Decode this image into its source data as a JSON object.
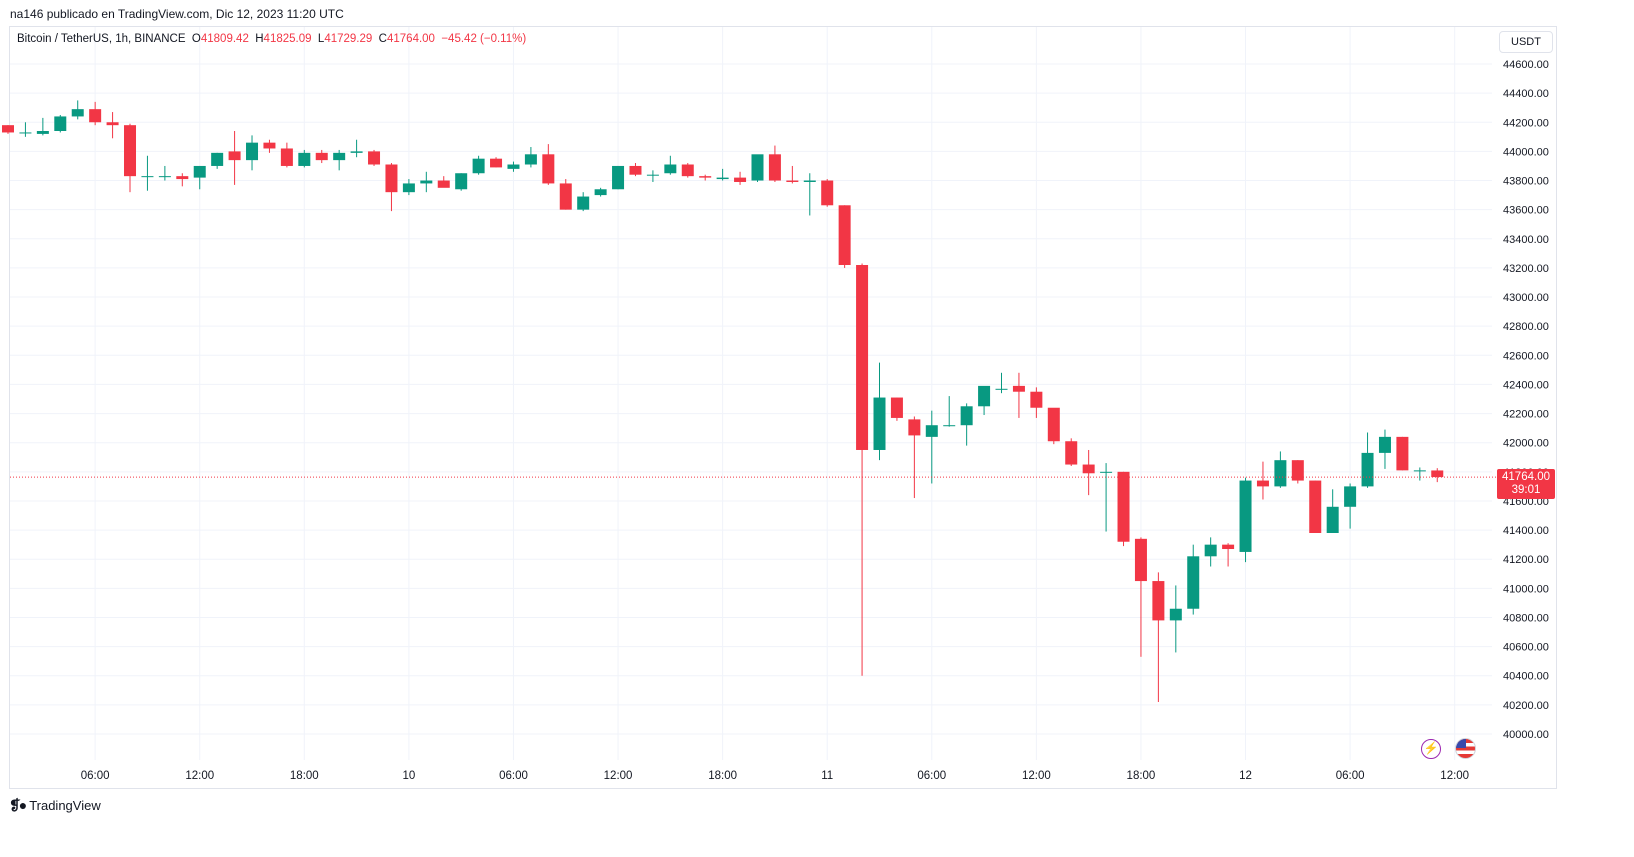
{
  "header": {
    "text": "na146 publicado en TradingView.com, Dic 12, 2023 11:20 UTC"
  },
  "legend": {
    "symbol": "Bitcoin / TetherUS, 1h, BINANCE",
    "o_label": "O",
    "o_value": "41809.42",
    "h_label": "H",
    "h_value": "41825.09",
    "l_label": "L",
    "l_value": "41729.29",
    "c_label": "C",
    "c_value": "41764.00",
    "change": "−45.42 (−0.11%)"
  },
  "currency_button": "USDT",
  "price_badge": {
    "price": "41764.00",
    "countdown": "39:01"
  },
  "footer": {
    "brand": "TradingView"
  },
  "icons": {
    "flash": "lightning-icon",
    "flag": "us-flag-icon"
  },
  "colors": {
    "up": "#089981",
    "down": "#f23645",
    "grid": "#f0f3fa",
    "text": "#131722"
  },
  "chart_data": {
    "type": "candlestick",
    "current_price": 41764.0,
    "y_ticks": [
      44600,
      44400,
      44200,
      44000,
      43800,
      43600,
      43400,
      43200,
      43000,
      42800,
      42600,
      42400,
      42200,
      42000,
      41800,
      41600,
      41400,
      41200,
      41000,
      40800,
      40600,
      40400,
      40200,
      40000
    ],
    "y_tick_labels": [
      "44600.00",
      "44400.00",
      "44200.00",
      "44000.00",
      "43800.00",
      "43600.00",
      "43400.00",
      "43200.00",
      "43000.00",
      "42800.00",
      "42600.00",
      "42400.00",
      "42200.00",
      "42000.00",
      "41800.00",
      "41600.00",
      "41400.00",
      "41200.00",
      "41000.00",
      "40800.00",
      "40600.00",
      "40400.00",
      "40200.00",
      "40000.00"
    ],
    "x_ticks": [
      {
        "bar": 5,
        "label": "06:00"
      },
      {
        "bar": 11,
        "label": "12:00"
      },
      {
        "bar": 17,
        "label": "18:00"
      },
      {
        "bar": 23,
        "label": "10"
      },
      {
        "bar": 29,
        "label": "06:00"
      },
      {
        "bar": 35,
        "label": "12:00"
      },
      {
        "bar": 41,
        "label": "18:00"
      },
      {
        "bar": 47,
        "label": "11"
      },
      {
        "bar": 53,
        "label": "06:00"
      },
      {
        "bar": 59,
        "label": "12:00"
      },
      {
        "bar": 65,
        "label": "18:00"
      },
      {
        "bar": 71,
        "label": "12"
      },
      {
        "bar": 77,
        "label": "06:00"
      },
      {
        "bar": 83,
        "label": "12:00"
      }
    ],
    "candles": [
      [
        44180,
        44180,
        44120,
        44130
      ],
      [
        44130,
        44200,
        44100,
        44130
      ],
      [
        44120,
        44230,
        44110,
        44140
      ],
      [
        44140,
        44250,
        44130,
        44240
      ],
      [
        44240,
        44350,
        44220,
        44290
      ],
      [
        44290,
        44340,
        44180,
        44200
      ],
      [
        44200,
        44270,
        44090,
        44180
      ],
      [
        44180,
        44190,
        43720,
        43830
      ],
      [
        43830,
        43970,
        43730,
        43830
      ],
      [
        43830,
        43900,
        43800,
        43830
      ],
      [
        43830,
        43850,
        43760,
        43810
      ],
      [
        43820,
        43900,
        43740,
        43900
      ],
      [
        43900,
        43990,
        43880,
        43990
      ],
      [
        44000,
        44140,
        43770,
        43940
      ],
      [
        43940,
        44110,
        43870,
        44060
      ],
      [
        44060,
        44080,
        43990,
        44020
      ],
      [
        44020,
        44060,
        43890,
        43900
      ],
      [
        43900,
        44010,
        43890,
        43990
      ],
      [
        43990,
        44010,
        43920,
        43940
      ],
      [
        43940,
        44010,
        43870,
        43990
      ],
      [
        43990,
        44080,
        43960,
        44000
      ],
      [
        44000,
        44010,
        43900,
        43910
      ],
      [
        43910,
        43920,
        43590,
        43720
      ],
      [
        43720,
        43810,
        43700,
        43780
      ],
      [
        43780,
        43860,
        43720,
        43800
      ],
      [
        43800,
        43830,
        43760,
        43750
      ],
      [
        43740,
        43850,
        43730,
        43850
      ],
      [
        43850,
        43970,
        43840,
        43950
      ],
      [
        43950,
        43960,
        43890,
        43890
      ],
      [
        43880,
        43930,
        43860,
        43910
      ],
      [
        43910,
        44030,
        43890,
        43980
      ],
      [
        43980,
        44050,
        43770,
        43780
      ],
      [
        43780,
        43810,
        43600,
        43600
      ],
      [
        43600,
        43720,
        43590,
        43690
      ],
      [
        43700,
        43750,
        43690,
        43740
      ],
      [
        43740,
        43900,
        43740,
        43900
      ],
      [
        43900,
        43920,
        43830,
        43840
      ],
      [
        43840,
        43870,
        43790,
        43840
      ],
      [
        43850,
        43970,
        43840,
        43910
      ],
      [
        43910,
        43920,
        43820,
        43830
      ],
      [
        43830,
        43840,
        43800,
        43820
      ],
      [
        43810,
        43880,
        43800,
        43820
      ],
      [
        43820,
        43860,
        43770,
        43790
      ],
      [
        43800,
        43960,
        43790,
        43980
      ],
      [
        43980,
        44040,
        43790,
        43800
      ],
      [
        43800,
        43900,
        43780,
        43790
      ],
      [
        43790,
        43850,
        43560,
        43800
      ],
      [
        43800,
        43810,
        43620,
        43630
      ],
      [
        43630,
        43630,
        43200,
        43220
      ],
      [
        43220,
        43230,
        40400,
        41950
      ],
      [
        41950,
        42550,
        41880,
        42310
      ],
      [
        42310,
        42310,
        42150,
        42170
      ],
      [
        42160,
        42180,
        41620,
        42050
      ],
      [
        42040,
        42220,
        41720,
        42120
      ],
      [
        42120,
        42320,
        42110,
        42120
      ],
      [
        42120,
        42270,
        41980,
        42250
      ],
      [
        42250,
        42380,
        42190,
        42390
      ],
      [
        42370,
        42480,
        42340,
        42370
      ],
      [
        42390,
        42480,
        42170,
        42350
      ],
      [
        42350,
        42380,
        42170,
        42240
      ],
      [
        42240,
        42220,
        41990,
        42010
      ],
      [
        42010,
        42030,
        41840,
        41850
      ],
      [
        41850,
        41950,
        41640,
        41790
      ],
      [
        41800,
        41860,
        41390,
        41800
      ],
      [
        41800,
        41800,
        41290,
        41320
      ],
      [
        41340,
        41350,
        40530,
        41050
      ],
      [
        41050,
        41110,
        40220,
        40780
      ],
      [
        40780,
        41020,
        40560,
        40860
      ],
      [
        40860,
        41300,
        40820,
        41220
      ],
      [
        41220,
        41350,
        41150,
        41300
      ],
      [
        41300,
        41310,
        41150,
        41270
      ],
      [
        41250,
        41760,
        41180,
        41740
      ],
      [
        41740,
        41870,
        41610,
        41700
      ],
      [
        41700,
        41940,
        41690,
        41880
      ],
      [
        41880,
        41880,
        41720,
        41740
      ],
      [
        41740,
        41740,
        41380,
        41380
      ],
      [
        41380,
        41680,
        41380,
        41560
      ],
      [
        41560,
        41720,
        41410,
        41700
      ],
      [
        41700,
        42070,
        41690,
        41930
      ],
      [
        41930,
        42090,
        41820,
        42040
      ],
      [
        42040,
        42040,
        41810,
        41810
      ],
      [
        41810,
        41830,
        41740,
        41810
      ],
      [
        41809.42,
        41825.09,
        41729.29,
        41764.0
      ]
    ]
  }
}
